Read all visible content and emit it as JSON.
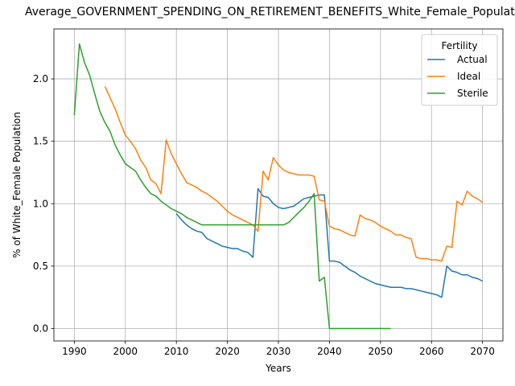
{
  "chart_data": {
    "type": "line",
    "title": "Average_GOVERNMENT_SPENDING_ON_RETIREMENT_BENEFITS_White_Female_Population",
    "xlabel": "Years",
    "ylabel": "% of White_Female Population",
    "xlim": [
      1986,
      2074
    ],
    "ylim": [
      -0.1,
      2.4
    ],
    "xticks": [
      1990,
      2000,
      2010,
      2020,
      2030,
      2040,
      2050,
      2060,
      2070
    ],
    "yticks": [
      0.0,
      0.5,
      1.0,
      1.5,
      2.0
    ],
    "grid": true,
    "legend_title": "Fertility",
    "legend_position": "top-right",
    "series": [
      {
        "name": "Actual",
        "color": "#1f77b4",
        "x": [
          2010,
          2011,
          2012,
          2013,
          2014,
          2015,
          2016,
          2017,
          2018,
          2019,
          2020,
          2021,
          2022,
          2023,
          2024,
          2025,
          2026,
          2027,
          2028,
          2029,
          2030,
          2031,
          2032,
          2033,
          2034,
          2035,
          2036,
          2037,
          2038,
          2039,
          2040,
          2041,
          2042,
          2043,
          2044,
          2045,
          2046,
          2047,
          2048,
          2049,
          2050,
          2051,
          2052,
          2053,
          2054,
          2055,
          2056,
          2057,
          2058,
          2059,
          2060,
          2061,
          2062,
          2063,
          2064,
          2065,
          2066,
          2067,
          2068,
          2069,
          2070
        ],
        "y": [
          0.92,
          0.87,
          0.83,
          0.8,
          0.78,
          0.77,
          0.72,
          0.7,
          0.68,
          0.66,
          0.65,
          0.64,
          0.64,
          0.62,
          0.61,
          0.57,
          1.12,
          1.06,
          1.05,
          1.0,
          0.97,
          0.96,
          0.97,
          0.98,
          1.01,
          1.04,
          1.05,
          1.06,
          1.07,
          1.07,
          0.54,
          0.54,
          0.53,
          0.5,
          0.47,
          0.45,
          0.42,
          0.4,
          0.38,
          0.36,
          0.35,
          0.34,
          0.33,
          0.33,
          0.33,
          0.32,
          0.32,
          0.31,
          0.3,
          0.29,
          0.28,
          0.27,
          0.25,
          0.5,
          0.46,
          0.45,
          0.43,
          0.43,
          0.41,
          0.4,
          0.38
        ]
      },
      {
        "name": "Ideal",
        "color": "#ff7f0e",
        "x": [
          1996,
          1997,
          1998,
          1999,
          2000,
          2001,
          2002,
          2003,
          2004,
          2005,
          2006,
          2007,
          2008,
          2009,
          2010,
          2011,
          2012,
          2013,
          2014,
          2015,
          2016,
          2017,
          2018,
          2019,
          2020,
          2021,
          2022,
          2023,
          2024,
          2025,
          2026,
          2027,
          2028,
          2029,
          2030,
          2031,
          2032,
          2033,
          2034,
          2035,
          2036,
          2037,
          2038,
          2039,
          2040,
          2041,
          2042,
          2043,
          2044,
          2045,
          2046,
          2047,
          2048,
          2049,
          2050,
          2051,
          2052,
          2053,
          2054,
          2055,
          2056,
          2057,
          2058,
          2059,
          2060,
          2061,
          2062,
          2063,
          2064,
          2065,
          2066,
          2067,
          2068,
          2069,
          2070
        ],
        "y": [
          1.94,
          1.85,
          1.76,
          1.65,
          1.55,
          1.5,
          1.44,
          1.35,
          1.29,
          1.19,
          1.16,
          1.08,
          1.51,
          1.4,
          1.32,
          1.24,
          1.17,
          1.15,
          1.13,
          1.1,
          1.08,
          1.05,
          1.02,
          0.98,
          0.94,
          0.91,
          0.89,
          0.87,
          0.85,
          0.83,
          0.78,
          1.26,
          1.19,
          1.37,
          1.31,
          1.27,
          1.25,
          1.24,
          1.23,
          1.23,
          1.23,
          1.22,
          1.03,
          1.02,
          0.82,
          0.8,
          0.79,
          0.77,
          0.75,
          0.74,
          0.91,
          0.88,
          0.87,
          0.85,
          0.82,
          0.8,
          0.78,
          0.75,
          0.75,
          0.73,
          0.72,
          0.57,
          0.56,
          0.56,
          0.55,
          0.55,
          0.54,
          0.66,
          0.65,
          1.02,
          0.99,
          1.1,
          1.06,
          1.04,
          1.01
        ]
      },
      {
        "name": "Sterile",
        "color": "#2ca02c",
        "x": [
          1990,
          1991,
          1992,
          1993,
          1994,
          1995,
          1996,
          1997,
          1998,
          1999,
          2000,
          2001,
          2002,
          2003,
          2004,
          2005,
          2006,
          2007,
          2008,
          2009,
          2010,
          2011,
          2012,
          2013,
          2014,
          2015,
          2016,
          2017,
          2018,
          2019,
          2020,
          2021,
          2022,
          2023,
          2024,
          2025,
          2026,
          2027,
          2028,
          2029,
          2030,
          2031,
          2032,
          2033,
          2034,
          2035,
          2036,
          2037,
          2038,
          2039,
          2040,
          2041,
          2042,
          2043,
          2044,
          2045,
          2046,
          2047,
          2048,
          2049,
          2050,
          2051,
          2052
        ],
        "y": [
          1.71,
          2.28,
          2.13,
          2.03,
          1.88,
          1.74,
          1.65,
          1.58,
          1.47,
          1.39,
          1.32,
          1.29,
          1.26,
          1.19,
          1.13,
          1.08,
          1.06,
          1.02,
          0.99,
          0.96,
          0.94,
          0.92,
          0.89,
          0.87,
          0.85,
          0.83,
          0.83,
          0.83,
          0.83,
          0.83,
          0.83,
          0.83,
          0.83,
          0.83,
          0.83,
          0.83,
          0.83,
          0.83,
          0.83,
          0.83,
          0.83,
          0.83,
          0.85,
          0.89,
          0.93,
          0.97,
          1.02,
          1.08,
          0.38,
          0.41,
          0.0,
          0.0,
          0.0,
          0.0,
          0.0,
          0.0,
          0.0,
          0.0,
          0.0,
          0.0,
          0.0,
          0.0,
          0.0
        ]
      }
    ]
  }
}
